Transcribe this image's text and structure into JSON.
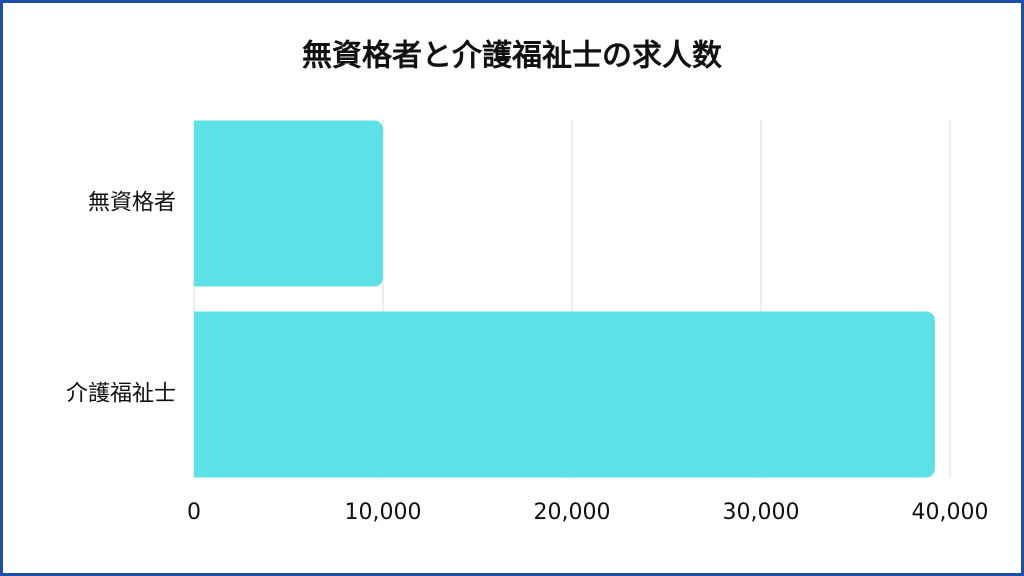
{
  "chart_data": {
    "type": "barh",
    "title": "無資格者と介護福祉士の求人数",
    "categories": [
      "無資格者",
      "介護福祉士"
    ],
    "values": [
      10000,
      39200
    ],
    "color": "#5ce1e6",
    "xlim": [
      0,
      40000
    ],
    "xticks": [
      0,
      {
        "value": 10000,
        "label": "10,000"
      },
      {
        "value": 20000,
        "label": "20,000"
      },
      {
        "value": 30000,
        "label": "30,000"
      },
      {
        "value": 40000,
        "label": "40,000"
      }
    ],
    "grid": true
  }
}
